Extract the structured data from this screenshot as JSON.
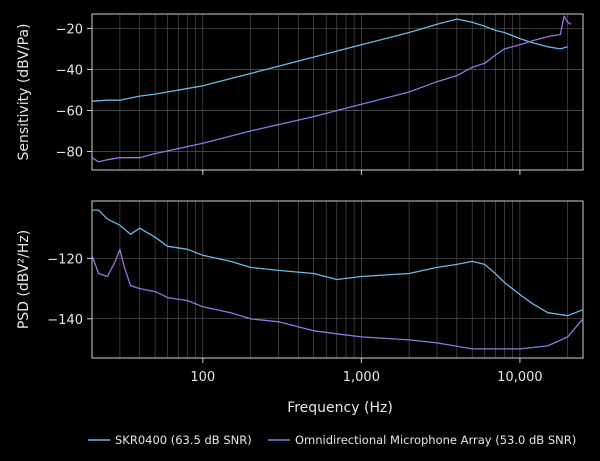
{
  "chart_data": {
    "type": "line",
    "xlabel": "Frequency (Hz)",
    "xscale": "log",
    "xlim": [
      20,
      25000
    ],
    "x_ticks": [
      100,
      1000,
      10000
    ],
    "x_tick_labels": [
      "100",
      "1,000",
      "10,000"
    ],
    "grid": true,
    "legend_placement": "bottom",
    "legend": [
      {
        "name": "SKR0400 (63.5 dB SNR)",
        "color": "#6ab8e8"
      },
      {
        "name": "Omnidirectional Microphone Array (53.0 dB SNR)",
        "color": "#9a72e0"
      }
    ],
    "panels": [
      {
        "ylabel": "Sensitivity (dBV/Pa)",
        "ylim": [
          -89,
          -13
        ],
        "y_ticks": [
          -80,
          -60,
          -40,
          -20
        ],
        "y_tick_labels": [
          "−80",
          "−60",
          "−40",
          "−20"
        ],
        "series": [
          {
            "name": "SKR0400 (63.5 dB SNR)",
            "color": "#6ab8e8",
            "x": [
              20,
              25,
              30,
              40,
              50,
              100,
              200,
              500,
              1000,
              2000,
              3000,
              4000,
              5000,
              6000,
              7000,
              8000,
              10000,
              12000,
              15000,
              18000,
              20000
            ],
            "y": [
              -55.5,
              -55,
              -55,
              -53,
              -52,
              -48,
              -42,
              -34,
              -28,
              -22,
              -18,
              -15.5,
              -17,
              -19,
              -21,
              -22,
              -25,
              -27,
              -29,
              -30,
              -29
            ]
          },
          {
            "name": "Omnidirectional Microphone Array (53.0 dB SNR)",
            "color": "#9a72e0",
            "x": [
              20,
              22,
              25,
              30,
              40,
              50,
              100,
              200,
              500,
              1000,
              2000,
              3000,
              4000,
              5000,
              6000,
              7000,
              8000,
              10000,
              12000,
              15000,
              18000,
              19000,
              20000,
              21000
            ],
            "y": [
              -83,
              -85,
              -84,
              -83,
              -83,
              -81,
              -76,
              -70,
              -63,
              -57,
              -51,
              -46,
              -43,
              -39,
              -37,
              -33,
              -30,
              -28,
              -26,
              -24,
              -23,
              -14,
              -17,
              -18
            ]
          }
        ]
      },
      {
        "ylabel": "PSD (dBV²/Hz)",
        "ylim": [
          -153,
          -101
        ],
        "y_ticks": [
          -140,
          -120
        ],
        "y_tick_labels": [
          "−140",
          "−120"
        ],
        "series": [
          {
            "name": "SKR0400 (63.5 dB SNR)",
            "color": "#6ab8e8",
            "x": [
              20,
              22,
              25,
              30,
              35,
              40,
              50,
              60,
              80,
              100,
              150,
              200,
              300,
              500,
              700,
              1000,
              2000,
              3000,
              4000,
              5000,
              6000,
              7000,
              8000,
              10000,
              12000,
              15000,
              20000,
              25000
            ],
            "y": [
              -104,
              -104,
              -107,
              -109,
              -112,
              -110,
              -113,
              -116,
              -117,
              -119,
              -121,
              -123,
              -124,
              -125,
              -127,
              -126,
              -125,
              -123,
              -122,
              -121,
              -122,
              -125,
              -128,
              -132,
              -135,
              -138,
              -139,
              -137
            ]
          },
          {
            "name": "Omnidirectional Microphone Array (53.0 dB SNR)",
            "color": "#9a72e0",
            "x": [
              20,
              22,
              25,
              28,
              30,
              32,
              35,
              40,
              50,
              60,
              80,
              100,
              150,
              200,
              300,
              500,
              700,
              1000,
              2000,
              3000,
              5000,
              7000,
              10000,
              15000,
              20000,
              25000
            ],
            "y": [
              -119,
              -125,
              -126,
              -121,
              -117,
              -123,
              -129,
              -130,
              -131,
              -133,
              -134,
              -136,
              -138,
              -140,
              -141,
              -144,
              -145,
              -146,
              -147,
              -148,
              -150,
              -150,
              -150,
              -149,
              -146,
              -140
            ]
          }
        ]
      }
    ]
  }
}
